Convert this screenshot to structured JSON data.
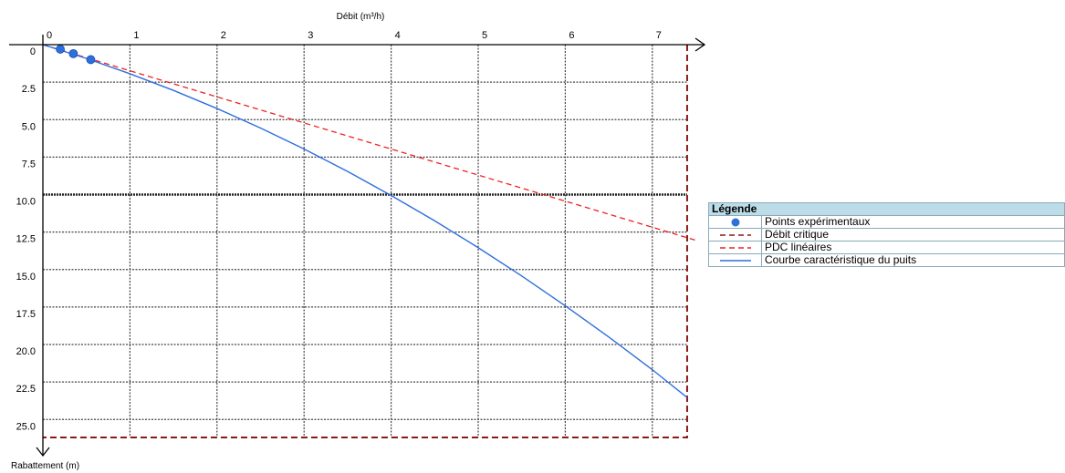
{
  "chart_data": {
    "type": "line",
    "x_axis": {
      "label": "Débit (m³/h)",
      "position": "top",
      "range": [
        0,
        7.4
      ],
      "ticks": [
        0,
        1,
        2,
        3,
        4,
        5,
        6,
        7
      ],
      "tick_labels": [
        "0",
        "1",
        "2",
        "3",
        "4",
        "5",
        "6",
        "7"
      ]
    },
    "y_axis": {
      "label": "Rabattement (m)",
      "reversed": true,
      "range": [
        0,
        26.2
      ],
      "ticks": [
        0,
        2.5,
        5,
        7.5,
        10,
        12.5,
        15,
        17.5,
        20,
        22.5,
        25
      ],
      "tick_labels": [
        "0",
        "2.5",
        "5.0",
        "7.5",
        "10.0",
        "12.5",
        "15.0",
        "17.5",
        "20.0",
        "22.5",
        "25.0"
      ]
    },
    "grid": true,
    "series": [
      {
        "name": "Points expérimentaux",
        "kind": "points",
        "color": "#2e6fdc",
        "x": [
          0.2,
          0.35,
          0.55
        ],
        "y": [
          0.3,
          0.6,
          1.0
        ]
      },
      {
        "name": "Débit critique",
        "kind": "dashed-boundary",
        "color": "#8b1a1a",
        "x_value": 7.4,
        "y_value": 26.2
      },
      {
        "name": "PDC linéaires",
        "kind": "dashed-line",
        "color": "#ee2222",
        "x": [
          0,
          7.5
        ],
        "y": [
          0,
          13.05
        ]
      },
      {
        "name": "Courbe caractéristique du puits",
        "kind": "curve",
        "color": "#2e6fdc",
        "x": [
          0,
          0.5,
          1,
          1.5,
          2,
          2.5,
          3,
          3.5,
          4,
          4.5,
          5,
          5.5,
          6,
          6.5,
          7,
          7.4
        ],
        "y": [
          0,
          0.92,
          1.94,
          3.05,
          4.26,
          5.56,
          6.96,
          8.46,
          10.06,
          11.75,
          13.54,
          15.43,
          17.42,
          19.5,
          21.68,
          23.54
        ]
      }
    ]
  },
  "legend": {
    "title": "Légende",
    "items": [
      {
        "label": "Points expérimentaux",
        "symbol": "dot",
        "color": "#2e6fdc"
      },
      {
        "label": "Débit critique",
        "symbol": "dash",
        "color": "#8b1a1a"
      },
      {
        "label": "PDC linéaires",
        "symbol": "dash",
        "color": "#ee2222"
      },
      {
        "label": "Courbe caractéristique du puits",
        "symbol": "line",
        "color": "#2e6fdc"
      }
    ]
  }
}
